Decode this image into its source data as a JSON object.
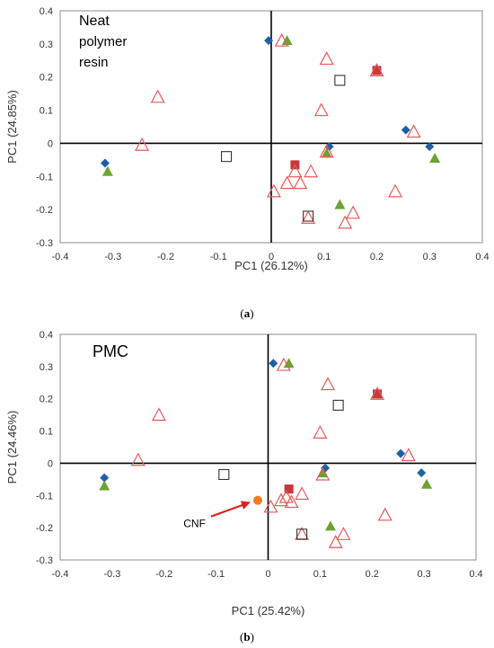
{
  "colors": {
    "diamond": "#1f5fa8",
    "green_triangle": "#6aa332",
    "red_square": "#c8373a",
    "open_triangle": "#e85a5a",
    "open_square": "#333333",
    "circle": "#f07c22",
    "arrow": "#e0201b",
    "axis": "#000000",
    "frame": "#8c8c8c"
  },
  "icons": {
    "diamond": "filled-diamond-marker",
    "green_triangle": "filled-triangle-marker",
    "red_square": "filled-square-marker",
    "open_triangle": "open-triangle-marker",
    "open_square": "open-square-marker",
    "circle": "filled-circle-marker"
  },
  "chart_data": [
    {
      "type": "scatter",
      "title_lines": [
        "Neat",
        "polymer",
        "resin"
      ],
      "caption_open": "(",
      "caption_letter": "a",
      "caption_close": ")",
      "xlabel": "PC1 (26.12%)",
      "ylabel": "PC1 (24.85%)",
      "xlim": [
        -0.4,
        0.4
      ],
      "ylim": [
        -0.3,
        0.4
      ],
      "xticks": [
        -0.4,
        -0.3,
        -0.2,
        -0.1,
        0,
        0.1,
        0.2,
        0.3,
        0.4
      ],
      "yticks": [
        -0.3,
        -0.2,
        -0.1,
        0,
        0.1,
        0.2,
        0.3,
        0.4
      ],
      "xtick_labels": [
        "-0.4",
        "-0.3",
        "-0.2",
        "-0.1",
        "0",
        "0.1",
        "0.2",
        "0.3",
        "0.4"
      ],
      "ytick_labels": [
        "-0.3",
        "-0.2",
        "-0.1",
        "0",
        "0.1",
        "0.2",
        "0.3",
        "0.4"
      ],
      "grid": false,
      "series": [
        {
          "marker": "diamond",
          "points": [
            [
              -0.005,
              0.31
            ],
            [
              0.11,
              -0.01
            ],
            [
              0.255,
              0.04
            ],
            [
              0.3,
              -0.01
            ],
            [
              -0.315,
              -0.06
            ]
          ]
        },
        {
          "marker": "green_triangle",
          "points": [
            [
              0.03,
              0.31
            ],
            [
              0.2,
              0.225
            ],
            [
              0.105,
              -0.03
            ],
            [
              0.31,
              -0.045
            ],
            [
              -0.31,
              -0.085
            ],
            [
              0.13,
              -0.185
            ]
          ]
        },
        {
          "marker": "red_square",
          "points": [
            [
              0.045,
              -0.065
            ],
            [
              0.2,
              0.22
            ]
          ]
        },
        {
          "marker": "open_triangle",
          "points": [
            [
              0.02,
              0.31
            ],
            [
              0.105,
              0.255
            ],
            [
              0.2,
              0.22
            ],
            [
              0.095,
              0.1
            ],
            [
              0.27,
              0.035
            ],
            [
              -0.215,
              0.14
            ],
            [
              -0.245,
              -0.005
            ],
            [
              0.105,
              -0.025
            ],
            [
              0.045,
              -0.085
            ],
            [
              0.075,
              -0.085
            ],
            [
              0.005,
              -0.145
            ],
            [
              0.03,
              -0.12
            ],
            [
              0.055,
              -0.12
            ],
            [
              0.07,
              -0.225
            ],
            [
              0.14,
              -0.24
            ],
            [
              0.155,
              -0.21
            ],
            [
              0.235,
              -0.145
            ]
          ]
        },
        {
          "marker": "open_square",
          "points": [
            [
              0.13,
              0.19
            ],
            [
              -0.085,
              -0.04
            ],
            [
              0.07,
              -0.22
            ]
          ]
        }
      ]
    },
    {
      "type": "scatter",
      "title_lines": [
        "PMC"
      ],
      "caption_open": "(",
      "caption_letter": "b",
      "caption_close": ")",
      "xlabel": "PC1 (25.42%)",
      "ylabel": "PC1 (24.46%)",
      "xlim": [
        -0.4,
        0.4
      ],
      "ylim": [
        -0.3,
        0.4
      ],
      "xticks": [
        -0.4,
        -0.3,
        -0.2,
        -0.1,
        0,
        0.1,
        0.2,
        0.3,
        0.4
      ],
      "yticks": [
        -0.3,
        -0.2,
        -0.1,
        0,
        0.1,
        0.2,
        0.3,
        0.4
      ],
      "xtick_labels": [
        "-0.4",
        "-0.3",
        "-0.2",
        "-0.1",
        "0",
        "0.1",
        "0.2",
        "0.3",
        "0.4"
      ],
      "ytick_labels": [
        "-0.3",
        "-0.2",
        "-0.1",
        "0",
        "0.1",
        "0.2",
        "0.3",
        "0.4"
      ],
      "grid": false,
      "annotation": {
        "text": "CNF",
        "x": -0.02,
        "y": -0.115
      },
      "series": [
        {
          "marker": "diamond",
          "points": [
            [
              0.01,
              0.31
            ],
            [
              0.11,
              -0.015
            ],
            [
              0.255,
              0.03
            ],
            [
              0.295,
              -0.03
            ],
            [
              -0.315,
              -0.045
            ]
          ]
        },
        {
          "marker": "green_triangle",
          "points": [
            [
              0.04,
              0.31
            ],
            [
              0.21,
              0.215
            ],
            [
              0.105,
              -0.03
            ],
            [
              0.305,
              -0.065
            ],
            [
              -0.315,
              -0.07
            ],
            [
              0.12,
              -0.195
            ]
          ]
        },
        {
          "marker": "red_square",
          "points": [
            [
              0.04,
              -0.08
            ],
            [
              0.21,
              0.215
            ]
          ]
        },
        {
          "marker": "open_triangle",
          "points": [
            [
              0.03,
              0.305
            ],
            [
              0.115,
              0.245
            ],
            [
              0.21,
              0.215
            ],
            [
              0.1,
              0.095
            ],
            [
              0.27,
              0.025
            ],
            [
              -0.21,
              0.15
            ],
            [
              -0.25,
              0.01
            ],
            [
              0.105,
              -0.035
            ],
            [
              0.035,
              -0.105
            ],
            [
              0.065,
              -0.095
            ],
            [
              0.005,
              -0.135
            ],
            [
              0.025,
              -0.115
            ],
            [
              0.045,
              -0.12
            ],
            [
              0.065,
              -0.22
            ],
            [
              0.13,
              -0.245
            ],
            [
              0.145,
              -0.22
            ],
            [
              0.225,
              -0.16
            ]
          ]
        },
        {
          "marker": "open_square",
          "points": [
            [
              0.135,
              0.18
            ],
            [
              -0.085,
              -0.035
            ],
            [
              0.065,
              -0.22
            ]
          ]
        },
        {
          "marker": "circle",
          "points": [
            [
              -0.02,
              -0.115
            ]
          ]
        }
      ]
    }
  ]
}
